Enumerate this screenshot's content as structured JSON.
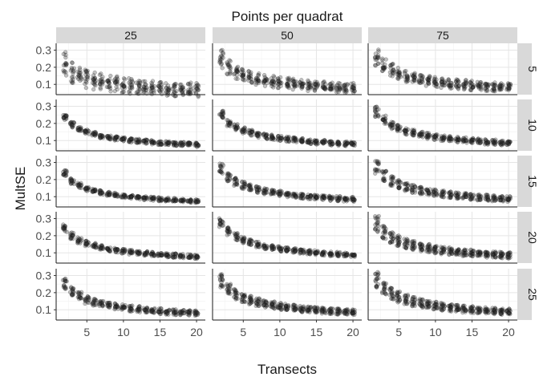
{
  "chart_data": {
    "type": "scatter",
    "facet_type": "grid",
    "title": "Points per quadrat",
    "xlabel": "Transects",
    "ylabel": "MultSE",
    "col_facet_labels": [
      "25",
      "50",
      "75"
    ],
    "row_facet_labels": [
      "5",
      "10",
      "15",
      "20",
      "25"
    ],
    "xlim": [
      0.8,
      21.2
    ],
    "ylim": [
      0.04,
      0.34
    ],
    "x_ticks": [
      5,
      10,
      15,
      20
    ],
    "x_tick_labels": [
      "5",
      "10",
      "15",
      "20"
    ],
    "y_ticks": [
      0.1,
      0.2,
      0.3
    ],
    "y_tick_labels": [
      "0.1",
      "0.2",
      "0.3"
    ],
    "x_range": [
      2,
      20
    ],
    "grid": true,
    "point_color": "#333333",
    "point_alpha": 0.3,
    "panels": [
      {
        "col": "25",
        "row": "5",
        "bands": [
          {
            "a": 0.34,
            "n": 0.5
          },
          {
            "a": 0.26,
            "n": 0.5
          }
        ],
        "spread": 0.03,
        "reps": 8
      },
      {
        "col": "50",
        "row": "5",
        "bands": [
          {
            "a": 0.38,
            "n": 0.5
          },
          {
            "a": 0.32,
            "n": 0.5
          }
        ],
        "spread": 0.022,
        "reps": 8
      },
      {
        "col": "75",
        "row": "5",
        "bands": [
          {
            "a": 0.39,
            "n": 0.5
          },
          {
            "a": 0.34,
            "n": 0.5
          }
        ],
        "spread": 0.02,
        "reps": 8
      },
      {
        "col": "25",
        "row": "10",
        "bands": [
          {
            "a": 0.34,
            "n": 0.5
          },
          {
            "a": 0.33,
            "n": 0.5
          }
        ],
        "spread": 0.01,
        "reps": 8
      },
      {
        "col": "50",
        "row": "10",
        "bands": [
          {
            "a": 0.37,
            "n": 0.5
          },
          {
            "a": 0.34,
            "n": 0.5
          }
        ],
        "spread": 0.01,
        "reps": 8
      },
      {
        "col": "75",
        "row": "10",
        "bands": [
          {
            "a": 0.4,
            "n": 0.5
          },
          {
            "a": 0.36,
            "n": 0.5
          }
        ],
        "spread": 0.01,
        "reps": 8
      },
      {
        "col": "25",
        "row": "15",
        "bands": [
          {
            "a": 0.34,
            "n": 0.5
          },
          {
            "a": 0.32,
            "n": 0.5
          }
        ],
        "spread": 0.008,
        "reps": 8
      },
      {
        "col": "50",
        "row": "15",
        "bands": [
          {
            "a": 0.4,
            "n": 0.5
          },
          {
            "a": 0.35,
            "n": 0.5
          }
        ],
        "spread": 0.008,
        "reps": 8
      },
      {
        "col": "75",
        "row": "15",
        "bands": [
          {
            "a": 0.42,
            "n": 0.5
          },
          {
            "a": 0.35,
            "n": 0.5
          }
        ],
        "spread": 0.008,
        "reps": 8
      },
      {
        "col": "25",
        "row": "20",
        "bands": [
          {
            "a": 0.36,
            "n": 0.5
          },
          {
            "a": 0.33,
            "n": 0.5
          }
        ],
        "spread": 0.008,
        "reps": 8
      },
      {
        "col": "50",
        "row": "20",
        "bands": [
          {
            "a": 0.41,
            "n": 0.5
          },
          {
            "a": 0.37,
            "n": 0.5
          }
        ],
        "spread": 0.008,
        "reps": 8
      },
      {
        "col": "75",
        "row": "20",
        "bands": [
          {
            "a": 0.43,
            "n": 0.5
          },
          {
            "a": 0.38,
            "n": 0.5
          },
          {
            "a": 0.33,
            "n": 0.5
          }
        ],
        "spread": 0.007,
        "reps": 6
      },
      {
        "col": "25",
        "row": "25",
        "bands": [
          {
            "a": 0.38,
            "n": 0.5
          },
          {
            "a": 0.33,
            "n": 0.5
          }
        ],
        "spread": 0.01,
        "reps": 8
      },
      {
        "col": "50",
        "row": "25",
        "bands": [
          {
            "a": 0.42,
            "n": 0.5
          },
          {
            "a": 0.38,
            "n": 0.5
          },
          {
            "a": 0.34,
            "n": 0.5
          }
        ],
        "spread": 0.007,
        "reps": 6
      },
      {
        "col": "75",
        "row": "25",
        "bands": [
          {
            "a": 0.44,
            "n": 0.5
          },
          {
            "a": 0.39,
            "n": 0.5
          },
          {
            "a": 0.34,
            "n": 0.5
          }
        ],
        "spread": 0.007,
        "reps": 6
      }
    ]
  }
}
